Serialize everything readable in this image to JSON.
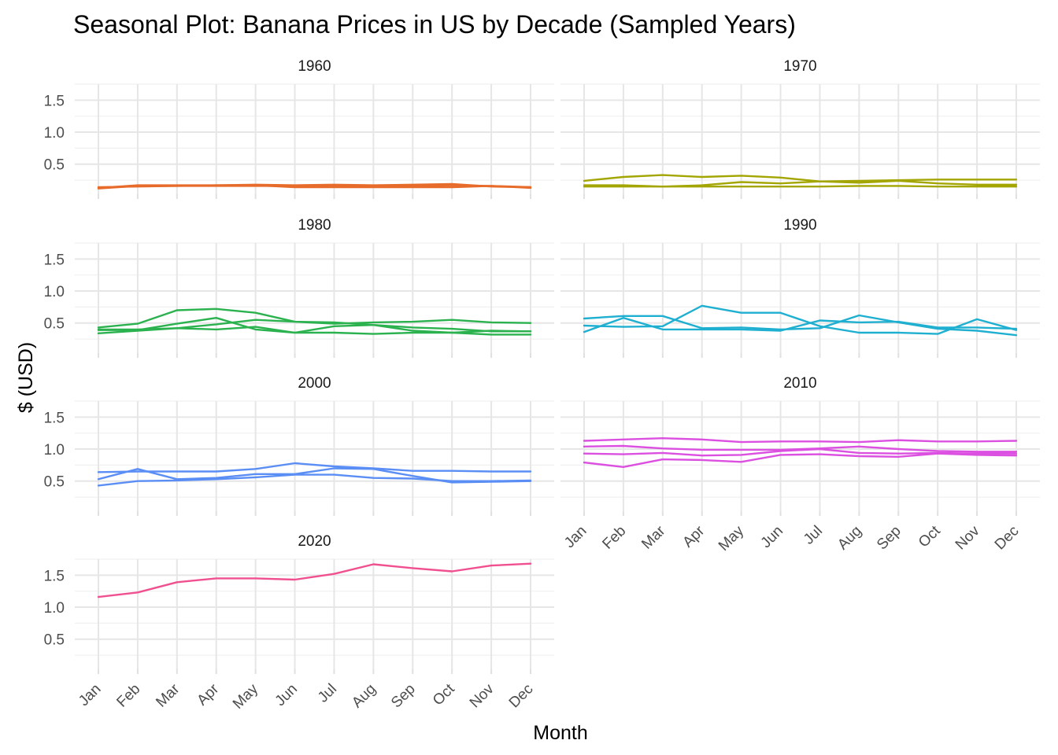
{
  "chart_data": {
    "type": "line",
    "title": "Seasonal Plot: Banana Prices in US by Decade (Sampled Years)",
    "xlabel": "Month",
    "ylabel": "$ (USD)",
    "categories": [
      "Jan",
      "Feb",
      "Mar",
      "Apr",
      "May",
      "Jun",
      "Jul",
      "Aug",
      "Sep",
      "Oct",
      "Nov",
      "Dec"
    ],
    "ylim": [
      0.03,
      1.75
    ],
    "yticks": [
      0.5,
      1.0,
      1.5
    ],
    "ytick_labels": [
      "0.5",
      "1.0",
      "1.5"
    ],
    "grid": true,
    "legend": "none",
    "facets": [
      {
        "label": "1960",
        "color": "#E76B2A",
        "series": [
          {
            "values": [
              0.12,
              0.16,
              0.16,
              0.17,
              0.17,
              0.14,
              0.14,
              0.14,
              0.14,
              0.14,
              0.16,
              0.14
            ]
          },
          {
            "values": [
              0.14,
              0.15,
              0.16,
              0.16,
              0.16,
              0.16,
              0.16,
              0.15,
              0.16,
              0.17,
              0.16,
              0.13
            ]
          },
          {
            "values": [
              0.13,
              0.17,
              0.17,
              0.17,
              0.18,
              0.17,
              0.18,
              0.17,
              0.18,
              0.19,
              0.15,
              0.14
            ]
          }
        ]
      },
      {
        "label": "1970",
        "color": "#A3A500",
        "series": [
          {
            "values": [
              0.24,
              0.3,
              0.33,
              0.3,
              0.32,
              0.29,
              0.23,
              0.24,
              0.25,
              0.26,
              0.26,
              0.26
            ]
          },
          {
            "values": [
              0.17,
              0.17,
              0.15,
              0.17,
              0.22,
              0.2,
              0.23,
              0.21,
              0.24,
              0.2,
              0.18,
              0.18
            ]
          },
          {
            "values": [
              0.15,
              0.15,
              0.15,
              0.15,
              0.15,
              0.15,
              0.15,
              0.16,
              0.16,
              0.15,
              0.15,
              0.15
            ]
          }
        ]
      },
      {
        "label": "1980",
        "color": "#2BB24F",
        "series": [
          {
            "values": [
              0.43,
              0.49,
              0.7,
              0.72,
              0.66,
              0.52,
              0.49,
              0.51,
              0.52,
              0.55,
              0.51,
              0.5
            ]
          },
          {
            "values": [
              0.39,
              0.39,
              0.49,
              0.58,
              0.4,
              0.35,
              0.45,
              0.47,
              0.43,
              0.41,
              0.37,
              0.37
            ]
          },
          {
            "values": [
              0.34,
              0.38,
              0.42,
              0.48,
              0.55,
              0.52,
              0.51,
              0.47,
              0.38,
              0.35,
              0.32,
              0.32
            ]
          },
          {
            "values": [
              0.4,
              0.4,
              0.42,
              0.4,
              0.44,
              0.35,
              0.35,
              0.33,
              0.35,
              0.35,
              0.38,
              0.37
            ]
          }
        ]
      },
      {
        "label": "1990",
        "color": "#1FAFD0",
        "series": [
          {
            "values": [
              0.57,
              0.61,
              0.61,
              0.42,
              0.43,
              0.4,
              0.42,
              0.62,
              0.51,
              0.41,
              0.38,
              0.31
            ]
          },
          {
            "values": [
              0.36,
              0.58,
              0.4,
              0.4,
              0.4,
              0.38,
              0.54,
              0.51,
              0.52,
              0.43,
              0.43,
              0.41
            ]
          },
          {
            "values": [
              0.46,
              0.44,
              0.45,
              0.77,
              0.66,
              0.66,
              0.45,
              0.35,
              0.35,
              0.33,
              0.56,
              0.39
            ]
          }
        ]
      },
      {
        "label": "2000",
        "color": "#5B8EF5",
        "series": [
          {
            "values": [
              0.64,
              0.65,
              0.65,
              0.65,
              0.69,
              0.78,
              0.73,
              0.7,
              0.66,
              0.66,
              0.65,
              0.65
            ]
          },
          {
            "values": [
              0.53,
              0.69,
              0.53,
              0.55,
              0.61,
              0.61,
              0.7,
              0.69,
              0.58,
              0.48,
              0.49,
              0.5
            ]
          },
          {
            "values": [
              0.43,
              0.5,
              0.51,
              0.53,
              0.56,
              0.6,
              0.6,
              0.55,
              0.54,
              0.5,
              0.5,
              0.51
            ]
          }
        ]
      },
      {
        "label": "2010",
        "color": "#DB50E0",
        "series": [
          {
            "values": [
              1.13,
              1.15,
              1.17,
              1.15,
              1.11,
              1.12,
              1.12,
              1.11,
              1.14,
              1.12,
              1.12,
              1.13
            ]
          },
          {
            "values": [
              1.04,
              1.05,
              1.01,
              0.99,
              0.99,
              0.99,
              1.01,
              1.04,
              1.0,
              0.97,
              0.96,
              0.96
            ]
          },
          {
            "values": [
              0.93,
              0.92,
              0.94,
              0.9,
              0.91,
              0.97,
              1.0,
              0.94,
              0.93,
              0.94,
              0.93,
              0.93
            ]
          },
          {
            "values": [
              0.79,
              0.72,
              0.84,
              0.83,
              0.8,
              0.91,
              0.92,
              0.89,
              0.88,
              0.93,
              0.91,
              0.9
            ]
          }
        ]
      },
      {
        "label": "2020",
        "color": "#F0508F",
        "series": [
          {
            "values": [
              1.16,
              1.23,
              1.39,
              1.45,
              1.45,
              1.43,
              1.52,
              1.67,
              1.61,
              1.56,
              1.65,
              1.68
            ]
          }
        ]
      }
    ]
  }
}
